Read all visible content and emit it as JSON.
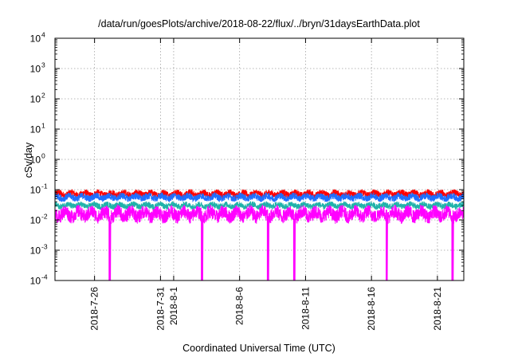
{
  "chart_data": {
    "type": "line",
    "title": "/data/run/goesPlots/archive/2018-08-22/flux/../bryn/31daysEarthData.plot",
    "xlabel": "Coordinated Universal Time (UTC)",
    "ylabel": "cSv/day",
    "yscale": "log",
    "ylim": [
      0.0001,
      10000
    ],
    "y_ticks": [
      {
        "base": "10",
        "exp": "-4",
        "value": 0.0001
      },
      {
        "base": "10",
        "exp": "-3",
        "value": 0.001
      },
      {
        "base": "10",
        "exp": "-2",
        "value": 0.01
      },
      {
        "base": "10",
        "exp": "-1",
        "value": 0.1
      },
      {
        "base": "10",
        "exp": "0",
        "value": 1
      },
      {
        "base": "10",
        "exp": "1",
        "value": 10
      },
      {
        "base": "10",
        "exp": "2",
        "value": 100
      },
      {
        "base": "10",
        "exp": "3",
        "value": 1000
      },
      {
        "base": "10",
        "exp": "4",
        "value": 10000
      }
    ],
    "xlim": [
      "2018-07-23",
      "2018-08-23"
    ],
    "x_ticks": [
      "2018-7-26",
      "2018-7-31",
      "2018-8-1",
      "2018-8-6",
      "2018-8-11",
      "2018-8-16",
      "2018-8-21"
    ],
    "grid": true,
    "series": [
      {
        "color": "#ff0000",
        "typical_range": [
          0.045,
          0.115
        ]
      },
      {
        "color": "#1f6fff",
        "typical_range": [
          0.035,
          0.09
        ]
      },
      {
        "color": "#20b2aa",
        "typical_range": [
          0.02,
          0.045
        ]
      },
      {
        "color": "#ff00ff",
        "typical_range": [
          0.006,
          0.04
        ],
        "drops_to_minimum_on": [
          "2018-07-27",
          "2018-08-03",
          "2018-08-08",
          "2018-08-10",
          "2018-08-17",
          "2018-08-22"
        ]
      }
    ]
  }
}
